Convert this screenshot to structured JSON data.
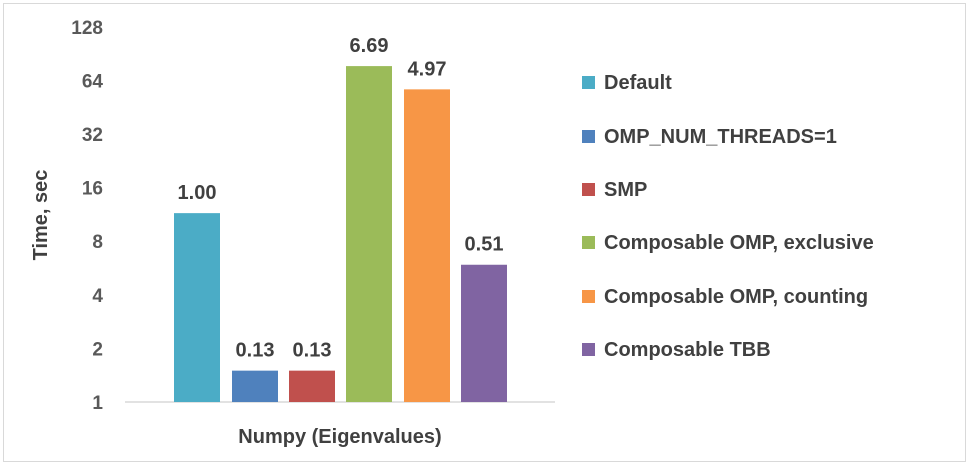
{
  "chart_data": {
    "type": "bar",
    "title": "",
    "xlabel": "Numpy (Eigenvalues)",
    "ylabel": "Time, sec",
    "y_scale": "log2",
    "ylim": [
      1,
      128
    ],
    "y_ticks": [
      1,
      2,
      4,
      8,
      16,
      32,
      64,
      128
    ],
    "grid": false,
    "legend_position": "right",
    "categories": [
      "Numpy (Eigenvalues)"
    ],
    "series": [
      {
        "name": "Default",
        "value": 11.5,
        "label": "1.00",
        "color": "#4bacc6"
      },
      {
        "name": "OMP_NUM_THREADS=1",
        "value": 1.5,
        "label": "0.13",
        "color": "#4f81bd"
      },
      {
        "name": "SMP",
        "value": 1.5,
        "label": "0.13",
        "color": "#c0504d"
      },
      {
        "name": "Composable OMP, exclusive",
        "value": 77,
        "label": "6.69",
        "color": "#9bbb59"
      },
      {
        "name": "Composable OMP, counting",
        "value": 57,
        "label": "4.97",
        "color": "#f79646"
      },
      {
        "name": "Composable TBB",
        "value": 5.9,
        "label": "0.51",
        "color": "#8064a2"
      }
    ]
  }
}
